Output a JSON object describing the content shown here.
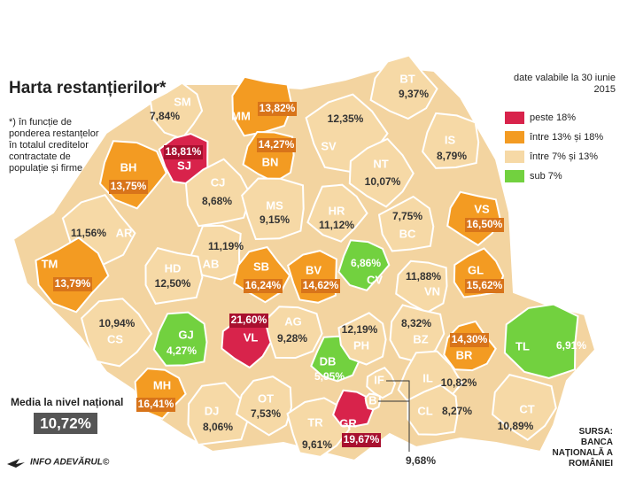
{
  "header": {
    "title": "Harta restanțierilor*",
    "note": "*) în funcție de ponderea restanțelor în totalul creditelor contractate de populație și firme"
  },
  "legend": {
    "title": "date valabile la 30 iunie 2015",
    "items": [
      {
        "label": "peste 18%",
        "color": "#d8234b"
      },
      {
        "label": "între 13% și 18%",
        "color": "#f39b22"
      },
      {
        "label": "între 7% și 13%",
        "color": "#f6d9a6"
      },
      {
        "label": "sub 7%",
        "color": "#72d13f"
      }
    ]
  },
  "average": {
    "label": "Media la nivel național",
    "value": 10.72,
    "value_label": "10,72%"
  },
  "source": "SURSA: BANCA NAȚIONALĂ A ROMÂNIEI",
  "credit": "INFO ADEVĂRUL©",
  "counties": [
    {
      "code": "SM",
      "value": 7.84,
      "value_label": "7,84%",
      "color": "#f6d9a6"
    },
    {
      "code": "MM",
      "value": 13.82,
      "value_label": "13,82%",
      "color": "#f39b22"
    },
    {
      "code": "BT",
      "value": 9.37,
      "value_label": "9,37%",
      "color": "#f6d9a6"
    },
    {
      "code": "SJ",
      "value": 18.81,
      "value_label": "18,81%",
      "color": "#d8234b"
    },
    {
      "code": "BH",
      "value": 13.75,
      "value_label": "13,75%",
      "color": "#f39b22"
    },
    {
      "code": "CJ",
      "value": 8.68,
      "value_label": "8,68%",
      "color": "#f6d9a6"
    },
    {
      "code": "BN",
      "value": 14.27,
      "value_label": "14,27%",
      "color": "#f39b22"
    },
    {
      "code": "SV",
      "value": 12.35,
      "value_label": "12,35%",
      "color": "#f6d9a6"
    },
    {
      "code": "IS",
      "value": 8.79,
      "value_label": "8,79%",
      "color": "#f6d9a6"
    },
    {
      "code": "NT",
      "value": 10.07,
      "value_label": "10,07%",
      "color": "#f6d9a6"
    },
    {
      "code": "MS",
      "value": 9.15,
      "value_label": "9,15%",
      "color": "#f6d9a6"
    },
    {
      "code": "HR",
      "value": 11.12,
      "value_label": "11,12%",
      "color": "#f6d9a6"
    },
    {
      "code": "BC",
      "value": 7.75,
      "value_label": "7,75%",
      "color": "#f6d9a6"
    },
    {
      "code": "VS",
      "value": 16.5,
      "value_label": "16,50%",
      "color": "#f39b22"
    },
    {
      "code": "AR",
      "value": 11.56,
      "value_label": "11,56%",
      "color": "#f6d9a6"
    },
    {
      "code": "AB",
      "value": 11.19,
      "value_label": "11,19%",
      "color": "#f6d9a6"
    },
    {
      "code": "TM",
      "value": 13.79,
      "value_label": "13,79%",
      "color": "#f39b22"
    },
    {
      "code": "HD",
      "value": 12.5,
      "value_label": "12,50%",
      "color": "#f6d9a6"
    },
    {
      "code": "SB",
      "value": 16.24,
      "value_label": "16,24%",
      "color": "#f39b22"
    },
    {
      "code": "BV",
      "value": 14.62,
      "value_label": "14,62%",
      "color": "#f39b22"
    },
    {
      "code": "CV",
      "value": 6.86,
      "value_label": "6,86%",
      "color": "#72d13f"
    },
    {
      "code": "GL",
      "value": 15.62,
      "value_label": "15,62%",
      "color": "#f39b22"
    },
    {
      "code": "VN",
      "value": 11.88,
      "value_label": "11,88%",
      "color": "#f6d9a6"
    },
    {
      "code": "CS",
      "value": 10.94,
      "value_label": "10,94%",
      "color": "#f6d9a6"
    },
    {
      "code": "GJ",
      "value": 4.27,
      "value_label": "4,27%",
      "color": "#72d13f"
    },
    {
      "code": "VL",
      "value": 21.6,
      "value_label": "21,60%",
      "color": "#d8234b"
    },
    {
      "code": "AG",
      "value": 9.28,
      "value_label": "9,28%",
      "color": "#f6d9a6"
    },
    {
      "code": "DB",
      "value": 5.95,
      "value_label": "5,95%",
      "color": "#72d13f"
    },
    {
      "code": "PH",
      "value": 12.19,
      "value_label": "12,19%",
      "color": "#f6d9a6"
    },
    {
      "code": "BZ",
      "value": 8.32,
      "value_label": "8,32%",
      "color": "#f6d9a6"
    },
    {
      "code": "BR",
      "value": 14.3,
      "value_label": "14,30%",
      "color": "#f39b22"
    },
    {
      "code": "TL",
      "value": 6.91,
      "value_label": "6,91%",
      "color": "#72d13f"
    },
    {
      "code": "MH",
      "value": 16.41,
      "value_label": "16,41%",
      "color": "#f39b22"
    },
    {
      "code": "DJ",
      "value": 8.06,
      "value_label": "8,06%",
      "color": "#f6d9a6"
    },
    {
      "code": "OT",
      "value": 7.53,
      "value_label": "7,53%",
      "color": "#f6d9a6"
    },
    {
      "code": "TR",
      "value": 9.61,
      "value_label": "9,61%",
      "color": "#f6d9a6"
    },
    {
      "code": "GR",
      "value": 19.67,
      "value_label": "19,67%",
      "color": "#d8234b"
    },
    {
      "code": "IF",
      "value": 9.68,
      "value_label": "9,68%",
      "color": "#f6d9a6"
    },
    {
      "code": "B",
      "value": null,
      "value_label": null,
      "color": "#f6d9a6"
    },
    {
      "code": "IL",
      "value": 10.82,
      "value_label": "10,82%",
      "color": "#f6d9a6"
    },
    {
      "code": "CL",
      "value": 8.27,
      "value_label": "8,27%",
      "color": "#f6d9a6"
    },
    {
      "code": "CT",
      "value": 10.89,
      "value_label": "10,89%",
      "color": "#f6d9a6"
    }
  ]
}
